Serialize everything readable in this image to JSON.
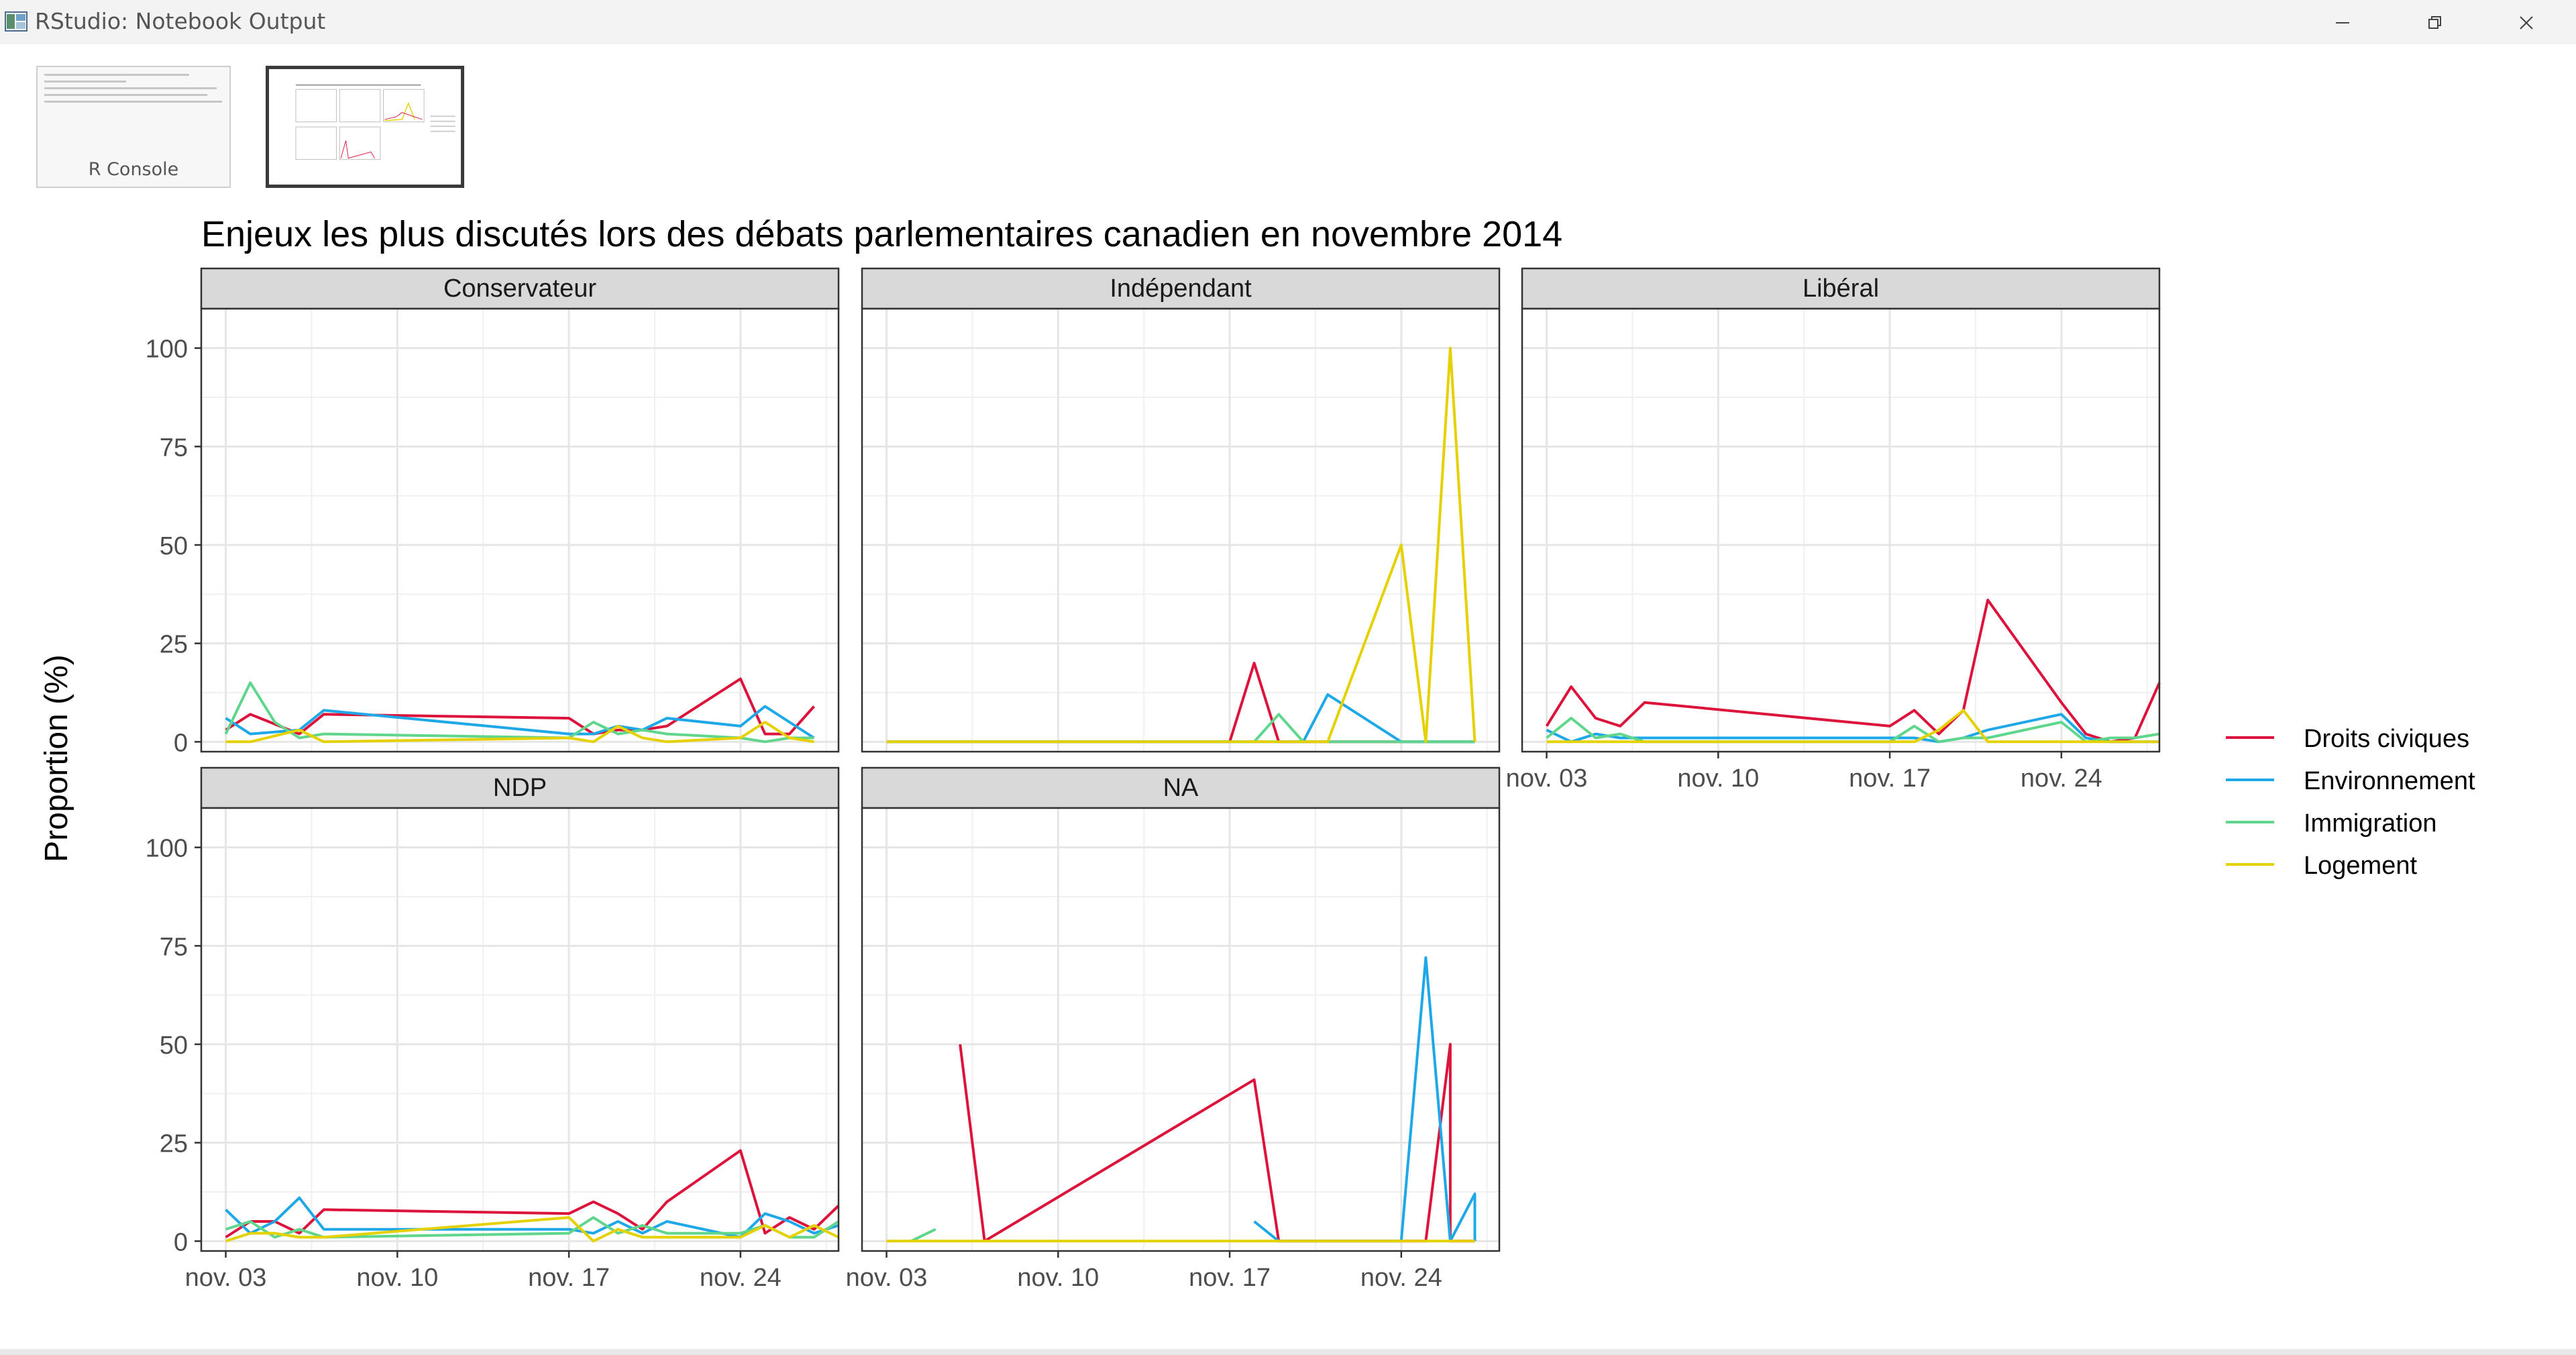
{
  "window": {
    "title": "RStudio: Notebook Output",
    "controls": [
      "minimize-icon",
      "restore-icon",
      "close-icon"
    ]
  },
  "thumbnails": [
    {
      "label": "R Console",
      "active": false
    },
    {
      "label": "",
      "active": true
    }
  ],
  "chart_data": {
    "type": "line",
    "title": "Enjeux les plus discutés lors des débats parlementaires canadien en novembre 2014",
    "xlabel": "",
    "ylabel": "Proportion (%)",
    "ylim": [
      -2.5,
      110
    ],
    "yticks": [
      0,
      25,
      50,
      75,
      100
    ],
    "xlim": [
      "2014-11-02",
      "2014-11-28"
    ],
    "xticks": [
      "2014-11-03",
      "2014-11-10",
      "2014-11-17",
      "2014-11-24"
    ],
    "xtick_labels": [
      "nov. 03",
      "nov. 10",
      "nov. 17",
      "nov. 24"
    ],
    "grid": true,
    "legend_position": "right",
    "legend": [
      {
        "name": "Droits civiques",
        "color": "#dc143c"
      },
      {
        "name": "Environnement",
        "color": "#1ea8e8"
      },
      {
        "name": "Immigration",
        "color": "#5fd68b"
      },
      {
        "name": "Logement",
        "color": "#e6d100"
      }
    ],
    "facets": [
      {
        "label": "Conservateur",
        "series": [
          {
            "name": "Droits civiques",
            "x": [
              "2014-11-03",
              "2014-11-04",
              "2014-11-06",
              "2014-11-07",
              "2014-11-17",
              "2014-11-18",
              "2014-11-19",
              "2014-11-20",
              "2014-11-21",
              "2014-11-24",
              "2014-11-25",
              "2014-11-26",
              "2014-11-27"
            ],
            "y": [
              3,
              7,
              2,
              7,
              6,
              2,
              3,
              3,
              4,
              16,
              2,
              2,
              9
            ]
          },
          {
            "name": "Environnement",
            "x": [
              "2014-11-03",
              "2014-11-04",
              "2014-11-06",
              "2014-11-07",
              "2014-11-17",
              "2014-11-18",
              "2014-11-19",
              "2014-11-20",
              "2014-11-21",
              "2014-11-24",
              "2014-11-25",
              "2014-11-26",
              "2014-11-27"
            ],
            "y": [
              6,
              2,
              3,
              8,
              2,
              2,
              4,
              3,
              6,
              4,
              9,
              5,
              1
            ]
          },
          {
            "name": "Immigration",
            "x": [
              "2014-11-03",
              "2014-11-04",
              "2014-11-05",
              "2014-11-06",
              "2014-11-07",
              "2014-11-17",
              "2014-11-18",
              "2014-11-19",
              "2014-11-20",
              "2014-11-21",
              "2014-11-24",
              "2014-11-25",
              "2014-11-26",
              "2014-11-27"
            ],
            "y": [
              2,
              15,
              5,
              1,
              2,
              1,
              5,
              2,
              3,
              2,
              1,
              0,
              1,
              1
            ]
          },
          {
            "name": "Logement",
            "x": [
              "2014-11-03",
              "2014-11-04",
              "2014-11-06",
              "2014-11-07",
              "2014-11-17",
              "2014-11-18",
              "2014-11-19",
              "2014-11-20",
              "2014-11-21",
              "2014-11-24",
              "2014-11-25",
              "2014-11-26",
              "2014-11-27"
            ],
            "y": [
              0,
              0,
              3,
              0,
              1,
              0,
              4,
              1,
              0,
              1,
              5,
              1,
              0
            ]
          }
        ]
      },
      {
        "label": "Indépendant",
        "series": [
          {
            "name": "Droits civiques",
            "x": [
              "2014-11-03",
              "2014-11-17",
              "2014-11-18",
              "2014-11-19",
              "2014-11-27"
            ],
            "y": [
              0,
              0,
              20,
              0,
              0
            ]
          },
          {
            "name": "Environnement",
            "x": [
              "2014-11-03",
              "2014-11-20",
              "2014-11-21",
              "2014-11-24",
              "2014-11-27"
            ],
            "y": [
              0,
              0,
              12,
              0,
              0
            ]
          },
          {
            "name": "Immigration",
            "x": [
              "2014-11-03",
              "2014-11-18",
              "2014-11-19",
              "2014-11-20",
              "2014-11-27"
            ],
            "y": [
              0,
              0,
              7,
              0,
              0
            ]
          },
          {
            "name": "Logement",
            "x": [
              "2014-11-03",
              "2014-11-21",
              "2014-11-24",
              "2014-11-25",
              "2014-11-26",
              "2014-11-27"
            ],
            "y": [
              0,
              0,
              50,
              0,
              100,
              0
            ]
          }
        ]
      },
      {
        "label": "Libéral",
        "series": [
          {
            "name": "Droits civiques",
            "x": [
              "2014-11-03",
              "2014-11-04",
              "2014-11-05",
              "2014-11-06",
              "2014-11-07",
              "2014-11-17",
              "2014-11-18",
              "2014-11-19",
              "2014-11-20",
              "2014-11-21",
              "2014-11-24",
              "2014-11-25",
              "2014-11-26",
              "2014-11-27",
              "2014-11-28"
            ],
            "y": [
              4,
              14,
              6,
              4,
              10,
              4,
              8,
              2,
              8,
              36,
              10,
              2,
              0,
              1,
              15
            ]
          },
          {
            "name": "Environnement",
            "x": [
              "2014-11-03",
              "2014-11-04",
              "2014-11-05",
              "2014-11-06",
              "2014-11-07",
              "2014-11-17",
              "2014-11-18",
              "2014-11-19",
              "2014-11-20",
              "2014-11-21",
              "2014-11-24",
              "2014-11-25",
              "2014-11-26",
              "2014-11-27",
              "2014-11-28"
            ],
            "y": [
              3,
              0,
              2,
              1,
              1,
              1,
              1,
              0,
              1,
              3,
              7,
              1,
              0,
              0,
              0
            ]
          },
          {
            "name": "Immigration",
            "x": [
              "2014-11-03",
              "2014-11-04",
              "2014-11-05",
              "2014-11-06",
              "2014-11-07",
              "2014-11-17",
              "2014-11-18",
              "2014-11-19",
              "2014-11-20",
              "2014-11-21",
              "2014-11-24",
              "2014-11-25",
              "2014-11-26",
              "2014-11-27",
              "2014-11-28"
            ],
            "y": [
              1,
              6,
              1,
              2,
              0,
              0,
              4,
              0,
              1,
              1,
              5,
              0,
              1,
              1,
              2
            ]
          },
          {
            "name": "Logement",
            "x": [
              "2014-11-03",
              "2014-11-04",
              "2014-11-05",
              "2014-11-06",
              "2014-11-07",
              "2014-11-17",
              "2014-11-18",
              "2014-11-19",
              "2014-11-20",
              "2014-11-21",
              "2014-11-24",
              "2014-11-25",
              "2014-11-26",
              "2014-11-27",
              "2014-11-28"
            ],
            "y": [
              0,
              0,
              0,
              0,
              0,
              0,
              0,
              3,
              8,
              0,
              0,
              0,
              0,
              0,
              0
            ]
          }
        ]
      },
      {
        "label": "NDP",
        "series": [
          {
            "name": "Droits civiques",
            "x": [
              "2014-11-03",
              "2014-11-04",
              "2014-11-05",
              "2014-11-06",
              "2014-11-07",
              "2014-11-17",
              "2014-11-18",
              "2014-11-19",
              "2014-11-20",
              "2014-11-21",
              "2014-11-24",
              "2014-11-25",
              "2014-11-26",
              "2014-11-27",
              "2014-11-28"
            ],
            "y": [
              1,
              5,
              5,
              2,
              8,
              7,
              10,
              7,
              3,
              10,
              23,
              2,
              6,
              3,
              9
            ]
          },
          {
            "name": "Environnement",
            "x": [
              "2014-11-03",
              "2014-11-04",
              "2014-11-05",
              "2014-11-06",
              "2014-11-07",
              "2014-11-17",
              "2014-11-18",
              "2014-11-19",
              "2014-11-20",
              "2014-11-21",
              "2014-11-24",
              "2014-11-25",
              "2014-11-26",
              "2014-11-27",
              "2014-11-28"
            ],
            "y": [
              8,
              2,
              5,
              11,
              3,
              3,
              2,
              5,
              2,
              5,
              1,
              7,
              5,
              2,
              4
            ]
          },
          {
            "name": "Immigration",
            "x": [
              "2014-11-03",
              "2014-11-04",
              "2014-11-05",
              "2014-11-06",
              "2014-11-07",
              "2014-11-17",
              "2014-11-18",
              "2014-11-19",
              "2014-11-20",
              "2014-11-21",
              "2014-11-24",
              "2014-11-25",
              "2014-11-26",
              "2014-11-27",
              "2014-11-28"
            ],
            "y": [
              3,
              5,
              1,
              3,
              1,
              2,
              6,
              2,
              4,
              2,
              2,
              4,
              1,
              1,
              5
            ]
          },
          {
            "name": "Logement",
            "x": [
              "2014-11-03",
              "2014-11-04",
              "2014-11-05",
              "2014-11-06",
              "2014-11-07",
              "2014-11-17",
              "2014-11-18",
              "2014-11-19",
              "2014-11-20",
              "2014-11-21",
              "2014-11-24",
              "2014-11-25",
              "2014-11-26",
              "2014-11-27",
              "2014-11-28"
            ],
            "y": [
              0,
              2,
              2,
              1,
              1,
              6,
              0,
              3,
              1,
              1,
              1,
              4,
              1,
              4,
              1
            ]
          }
        ]
      },
      {
        "label": "NA",
        "series": [
          {
            "name": "Droits civiques",
            "x": [
              "2014-11-06",
              "2014-11-07",
              "2014-11-18",
              "2014-11-19",
              "2014-11-24",
              "2014-11-25",
              "2014-11-26",
              "2014-11-26",
              "2014-11-27"
            ],
            "y": [
              50,
              0,
              41,
              0,
              0,
              0,
              50,
              0,
              0
            ]
          },
          {
            "name": "Environnement",
            "x": [
              "2014-11-18",
              "2014-11-19",
              "2014-11-24",
              "2014-11-25",
              "2014-11-26",
              "2014-11-27",
              "2014-11-27"
            ],
            "y": [
              5,
              0,
              0,
              72,
              0,
              12,
              0
            ]
          },
          {
            "name": "Immigration",
            "x": [
              "2014-11-04",
              "2014-11-05"
            ],
            "y": [
              0,
              3
            ]
          },
          {
            "name": "Logement",
            "x": [
              "2014-11-03",
              "2014-11-04",
              "2014-11-06",
              "2014-11-07",
              "2014-11-18",
              "2014-11-19",
              "2014-11-24",
              "2014-11-25",
              "2014-11-26",
              "2014-11-27"
            ],
            "y": [
              0,
              0,
              0,
              0,
              0,
              0,
              0,
              0,
              0,
              0
            ]
          }
        ]
      }
    ]
  }
}
